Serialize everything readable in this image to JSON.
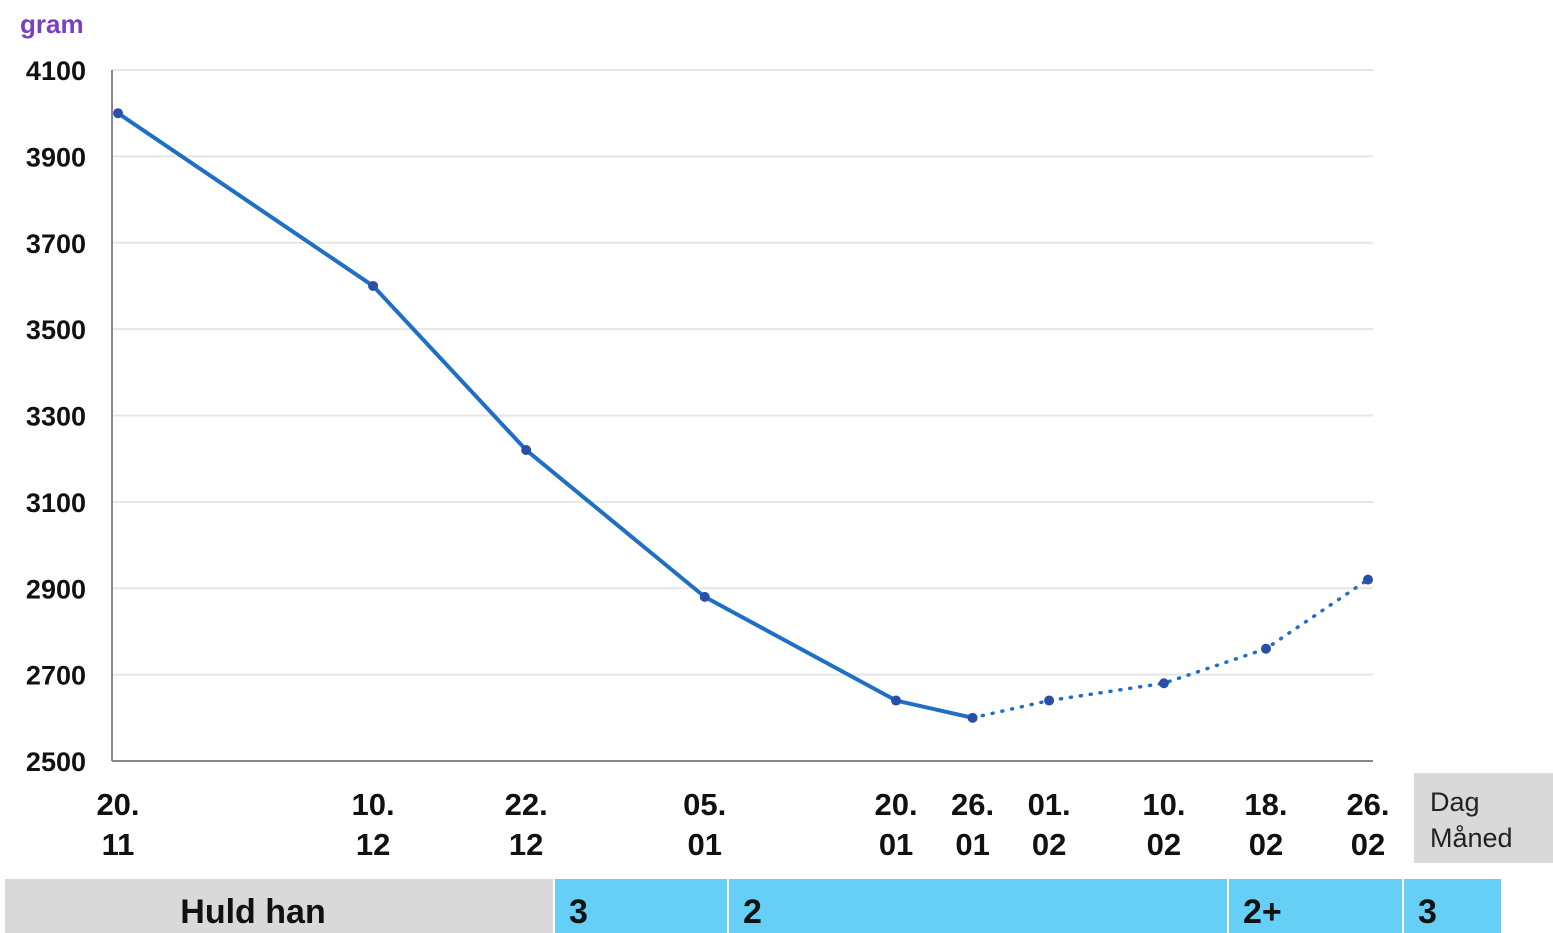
{
  "chart_data": {
    "type": "line",
    "ylabel": "gram",
    "ylim": [
      2500,
      4100
    ],
    "yticks": [
      2500,
      2700,
      2900,
      3100,
      3300,
      3500,
      3700,
      3900,
      4100
    ],
    "grid": true,
    "x_axis_legend": [
      "Dag",
      "Måned"
    ],
    "x_dates": [
      "2000-11-20",
      "2000-12-10",
      "2000-12-22",
      "2001-01-05",
      "2001-01-20",
      "2001-01-26",
      "2001-02-01",
      "2001-02-10",
      "2001-02-18",
      "2001-02-26"
    ],
    "x_labels": [
      [
        "20.",
        "11"
      ],
      [
        "10.",
        "12"
      ],
      [
        "22.",
        "12"
      ],
      [
        "05.",
        "01"
      ],
      [
        "20.",
        "01"
      ],
      [
        "26.",
        "01"
      ],
      [
        "01.",
        "02"
      ],
      [
        "10.",
        "02"
      ],
      [
        "18.",
        "02"
      ],
      [
        "26.",
        "02"
      ]
    ],
    "series": [
      {
        "style": "solid",
        "color": "#1f6fc5",
        "x": [
          "20.11",
          "10.12",
          "22.12",
          "05.01",
          "20.01",
          "26.01"
        ],
        "values": [
          4000,
          3600,
          3220,
          2880,
          2640,
          2600
        ]
      },
      {
        "style": "dotted",
        "color": "#1f6fc5",
        "x": [
          "26.01",
          "01.02",
          "10.02",
          "18.02",
          "26.02"
        ],
        "values": [
          2600,
          2640,
          2680,
          2760,
          2920
        ]
      }
    ],
    "condition_row": {
      "header": "Huld han",
      "segments": [
        {
          "label": "3",
          "from": "22.12",
          "to": "05.01"
        },
        {
          "label": "2",
          "from": "05.01",
          "to": "18.02"
        },
        {
          "label": "2+",
          "from": "18.02",
          "to": "26.02"
        },
        {
          "label": "3",
          "from": "26.02",
          "to": ""
        }
      ]
    }
  },
  "colors": {
    "line": "#1f6fc5",
    "marker": "#2a4fa8",
    "grid": "#e6e6e6",
    "axis": "#888888",
    "header_bg": "#d9d9d9",
    "segment_bg": "#66cff5",
    "ylabel": "#7a3fbf"
  }
}
